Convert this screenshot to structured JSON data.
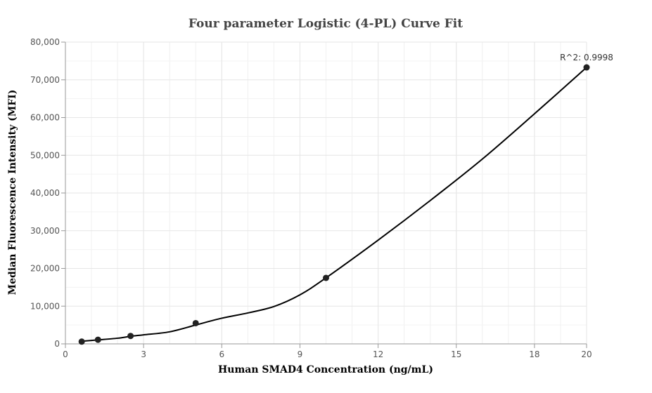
{
  "chart_data": {
    "type": "scatter",
    "title": "Four parameter Logistic (4-PL) Curve Fit",
    "xlabel": "Human SMAD4 Concentration (ng/mL)",
    "ylabel": "Median Fluorescence Intensity (MFI)",
    "xlim": [
      0,
      20
    ],
    "ylim": [
      0,
      80000
    ],
    "x_ticks": [
      0,
      3,
      6,
      9,
      12,
      15,
      18,
      20
    ],
    "y_ticks": [
      0,
      10000,
      20000,
      30000,
      40000,
      50000,
      60000,
      70000,
      80000
    ],
    "x_tick_labels": [
      "0",
      "3",
      "6",
      "9",
      "12",
      "15",
      "18",
      "20"
    ],
    "y_tick_labels": [
      "0",
      "10,000",
      "20,000",
      "30,000",
      "40,000",
      "50,000",
      "60,000",
      "70,000",
      "80,000"
    ],
    "grid": true,
    "points": [
      {
        "x": 0.625,
        "y": 600
      },
      {
        "x": 1.25,
        "y": 1100
      },
      {
        "x": 2.5,
        "y": 2100
      },
      {
        "x": 5,
        "y": 5500
      },
      {
        "x": 10,
        "y": 17500
      },
      {
        "x": 20,
        "y": 73300
      }
    ],
    "fit_curve": [
      {
        "x": 0.625,
        "y": 700
      },
      {
        "x": 1.25,
        "y": 1050
      },
      {
        "x": 2,
        "y": 1500
      },
      {
        "x": 2.5,
        "y": 2000
      },
      {
        "x": 3,
        "y": 2400
      },
      {
        "x": 4,
        "y": 3200
      },
      {
        "x": 5,
        "y": 5000
      },
      {
        "x": 6,
        "y": 6800
      },
      {
        "x": 7,
        "y": 8200
      },
      {
        "x": 8,
        "y": 9900
      },
      {
        "x": 9,
        "y": 13000
      },
      {
        "x": 10,
        "y": 17500
      },
      {
        "x": 12,
        "y": 27500
      },
      {
        "x": 14,
        "y": 38000
      },
      {
        "x": 16,
        "y": 49000
      },
      {
        "x": 18,
        "y": 61000
      },
      {
        "x": 20,
        "y": 73300
      }
    ],
    "annotation": {
      "text": "R^2: 0.9998",
      "x": 20,
      "y": 73300
    },
    "colors": {
      "curve": "#000000",
      "marker": "#222222",
      "grid": "#e6e6e6",
      "axis": "#999999"
    }
  }
}
